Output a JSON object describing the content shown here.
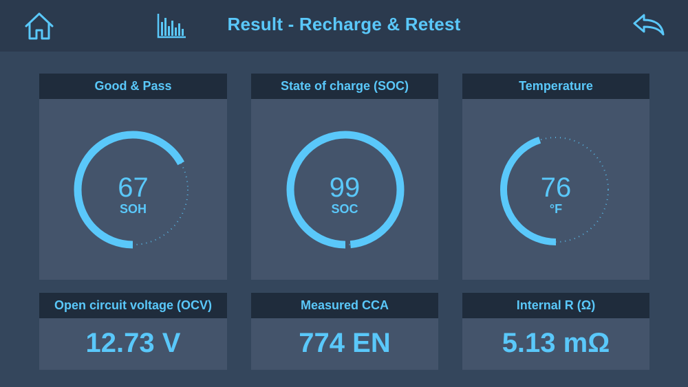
{
  "header": {
    "title": "Result - Recharge & Retest",
    "home_icon": "home-icon",
    "chart_icon": "bar-chart-icon",
    "back_icon": "back-arrow-icon"
  },
  "colors": {
    "accent": "#5ac8fa",
    "header_bg": "#2b3a4e",
    "card_head_bg": "#1f2c3c",
    "card_body_bg": "#44546b"
  },
  "cards": {
    "soh": {
      "title": "Good & Pass",
      "value": "67",
      "unit": "SOH",
      "fill_fraction": 0.67
    },
    "soc": {
      "title": "State of charge (SOC)",
      "value": "99",
      "unit": "SOC",
      "fill_fraction": 0.99
    },
    "temp": {
      "title": "Temperature",
      "value": "76",
      "unit": "°F",
      "fill_fraction": 0.45
    },
    "ocv": {
      "title": "Open circuit voltage (OCV)",
      "value": "12.73 V"
    },
    "cca": {
      "title": "Measured CCA",
      "value": "774 EN"
    },
    "ir": {
      "title": "Internal R (Ω)",
      "value": "5.13 mΩ"
    }
  }
}
